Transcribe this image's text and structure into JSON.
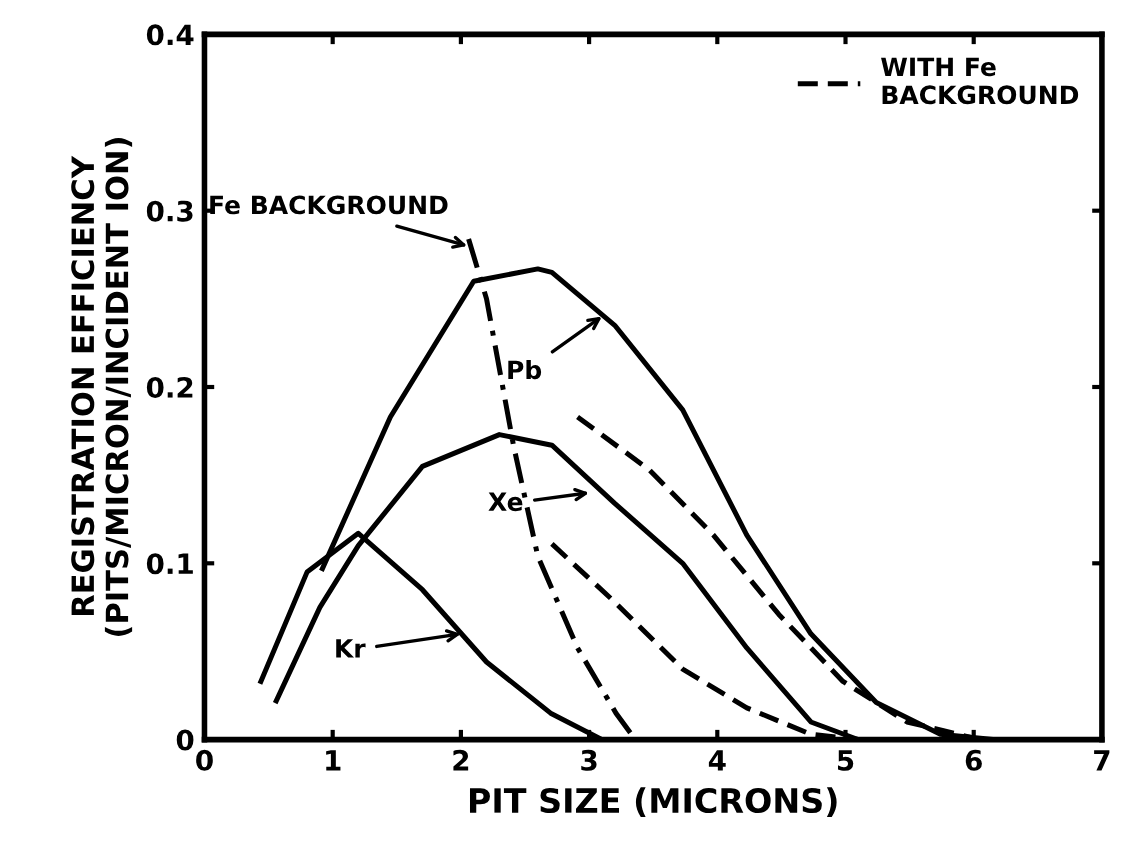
{
  "chart_data": {
    "type": "line",
    "xlabel": "PIT SIZE (MICRONS)",
    "ylabel": "REGISTRATION EFFICIENCY\n(PITS/MICRON/INCIDENT ION)",
    "xlim": [
      0,
      7
    ],
    "ylim": [
      0,
      0.4
    ],
    "xticks": [
      0,
      1,
      2,
      3,
      4,
      5,
      6,
      7
    ],
    "yticks": [
      0,
      0.1,
      0.2,
      0.3,
      0.4
    ],
    "grid": false,
    "legend": "top right",
    "marker": "none",
    "series": [
      {
        "color": "#000000",
        "line_style": "solid",
        "x": [
          0.44,
          0.8,
          1.2,
          1.7,
          2.2,
          2.7,
          3.1
        ],
        "values": [
          0.033,
          0.095,
          0.117,
          0.085,
          0.044,
          0.015,
          0
        ]
      },
      {
        "color": "#000000",
        "line_style": "solid",
        "x": [
          0.56,
          0.9,
          1.2,
          1.7,
          2.3,
          2.71,
          3.2,
          3.73,
          4.23,
          4.73,
          5.1
        ],
        "values": [
          0.022,
          0.075,
          0.11,
          0.155,
          0.173,
          0.167,
          0.134,
          0.1,
          0.052,
          0.01,
          0
        ]
      },
      {
        "color": "#000000",
        "line_style": "solid",
        "x": [
          0.92,
          1.45,
          2.1,
          2.6,
          2.71,
          3.2,
          3.73,
          4.23,
          4.73,
          5.24,
          5.74,
          6.15
        ],
        "values": [
          0.097,
          0.183,
          0.26,
          0.267,
          0.265,
          0.235,
          0.187,
          0.116,
          0.06,
          0.021,
          0.003,
          0
        ]
      },
      {
        "name": "WITH Fe\nBACKGROUND",
        "color": "#000000",
        "line_style": "dashed",
        "x": [
          2.91,
          3.47,
          3.97,
          4.48,
          4.98,
          5.48,
          6.05
        ],
        "values": [
          0.183,
          0.153,
          0.116,
          0.071,
          0.033,
          0.01,
          0
        ]
      },
      {
        "color": "#000000",
        "line_style": "dashed",
        "x": [
          2.71,
          3.2,
          3.73,
          4.23,
          4.73,
          5.1
        ],
        "values": [
          0.111,
          0.078,
          0.04,
          0.018,
          0.003,
          0
        ]
      },
      {
        "color": "#000000",
        "line_style": "dashdot",
        "x": [
          2.06,
          2.2,
          2.41,
          2.6,
          2.91,
          3.21,
          3.36
        ],
        "values": [
          0.284,
          0.25,
          0.167,
          0.104,
          0.052,
          0.015,
          0
        ]
      }
    ],
    "annotations": [
      {
        "text": "Kr",
        "x": 2.0,
        "y": 0.06
      },
      {
        "text": "Xe",
        "x": 3.0,
        "y": 0.14
      },
      {
        "text": "Pb",
        "x": 3.1,
        "y": 0.24
      },
      {
        "text": "Fe BACKGROUND",
        "x": 2.05,
        "y": 0.28
      }
    ]
  }
}
